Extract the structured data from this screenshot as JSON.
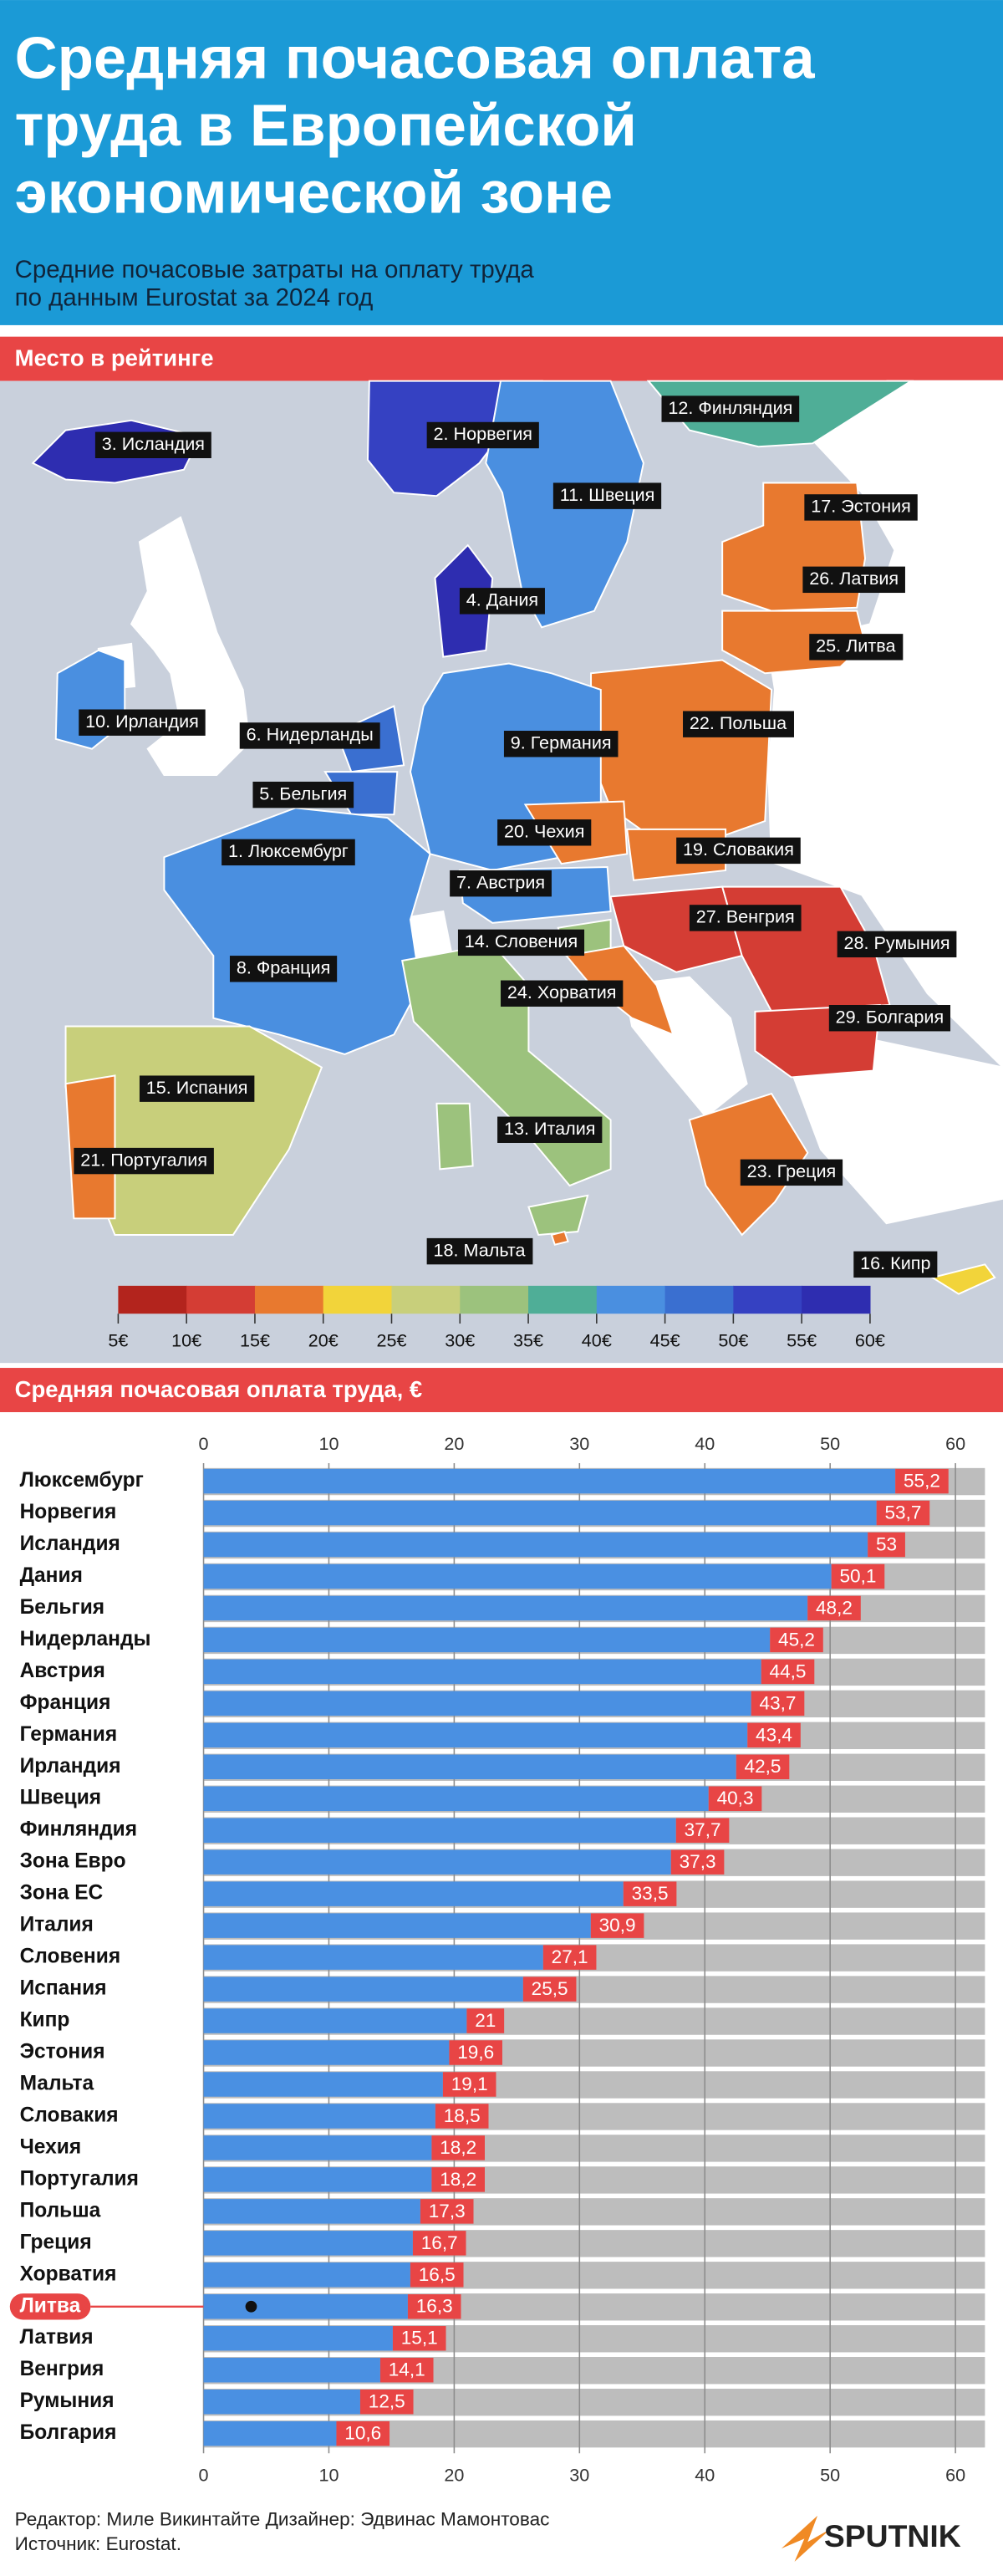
{
  "header": {
    "title": [
      "Средняя почасовая оплата",
      "труда в Европейской",
      "экономической зоне"
    ],
    "subtitle": [
      "Средние почасовые затраты на оплату труда",
      "по данным Eurostat за 2024 год"
    ]
  },
  "map": {
    "heading": "Место в рейтинге",
    "labels": [
      "3. Исландия",
      "2. Норвегия",
      "12. Финляндия",
      "11. Швеция",
      "17. Эстония",
      "26. Латвия",
      "4. Дания",
      "25. Литва",
      "10. Ирландия",
      "6. Нидерланды",
      "9. Германия",
      "22. Польша",
      "5. Бельгия",
      "20. Чехия",
      "1. Люксембург",
      "19. Словакия",
      "7. Австрия",
      "27. Венгрия",
      "28. Румыния",
      "14. Словения",
      "8. Франция",
      "24. Хорватия",
      "29. Болгария",
      "15. Испания",
      "13. Италия",
      "21. Португалия",
      "23. Греция",
      "18. Мальта",
      "16. Кипр"
    ],
    "scale": {
      "colors": [
        "#b3241d",
        "#d43d34",
        "#e8792f",
        "#f2d43a",
        "#c8cf7b",
        "#9cc27d",
        "#4fae97",
        "#4a8fe0",
        "#3a6fd0",
        "#3541c2",
        "#2e2db0"
      ],
      "ticks": [
        {
          "value": 5,
          "label": "5€"
        },
        {
          "value": 10,
          "label": "10€"
        },
        {
          "value": 15,
          "label": "15€"
        },
        {
          "value": 20,
          "label": "20€"
        },
        {
          "value": 25,
          "label": "25€"
        },
        {
          "value": 30,
          "label": "30€"
        },
        {
          "value": 35,
          "label": "35€"
        },
        {
          "value": 40,
          "label": "40€"
        },
        {
          "value": 45,
          "label": "45€"
        },
        {
          "value": 50,
          "label": "50€"
        },
        {
          "value": 55,
          "label": "55€"
        },
        {
          "value": 60,
          "label": "60€"
        }
      ]
    }
  },
  "chart_data": {
    "type": "bar",
    "orientation": "horizontal",
    "title": "Средняя почасовая оплата труда, €",
    "categories": [
      "Люксембург",
      "Норвегия",
      "Исландия",
      "Дания",
      "Бельгия",
      "Нидерланды",
      "Австрия",
      "Франция",
      "Германия",
      "Ирландия",
      "Швеция",
      "Финляндия",
      "Зона Евро",
      "Зона ЕС",
      "Италия",
      "Словения",
      "Испания",
      "Кипр",
      "Эстония",
      "Мальта",
      "Словакия",
      "Чехия",
      "Португалия",
      "Польша",
      "Греция",
      "Хорватия",
      "Литва",
      "Латвия",
      "Венгрия",
      "Румыния",
      "Болгария"
    ],
    "values": [
      55.2,
      53.7,
      53,
      50.1,
      48.2,
      45.2,
      44.5,
      43.7,
      43.4,
      42.5,
      40.3,
      37.7,
      37.3,
      33.5,
      30.9,
      27.1,
      25.5,
      21,
      19.6,
      19.1,
      18.5,
      18.2,
      18.2,
      17.3,
      16.7,
      16.5,
      16.3,
      15.1,
      14.1,
      12.5,
      10.6
    ],
    "value_labels": [
      "55,2",
      "53,7",
      "53",
      "50,1",
      "48,2",
      "45,2",
      "44,5",
      "43,7",
      "43,4",
      "42,5",
      "40,3",
      "37,7",
      "37,3",
      "33,5",
      "30,9",
      "27,1",
      "25,5",
      "21",
      "19,6",
      "19,1",
      "18,5",
      "18,2",
      "18,2",
      "17,3",
      "16,7",
      "16,5",
      "16,3",
      "15,1",
      "14,1",
      "12,5",
      "10,6"
    ],
    "color": "#4a90e2",
    "label_color": "#e84545",
    "highlight": "Литва",
    "xlim": [
      0,
      62
    ],
    "xticks": [
      0,
      10,
      20,
      30,
      40,
      50,
      60
    ],
    "grid": true
  },
  "footer": {
    "credits": "Редактор: Миле Викинтайте  Дизайнер: Эдвинас Мамонтовас",
    "source": "Источник: Eurostat.",
    "logo": "SPUTNIK"
  }
}
